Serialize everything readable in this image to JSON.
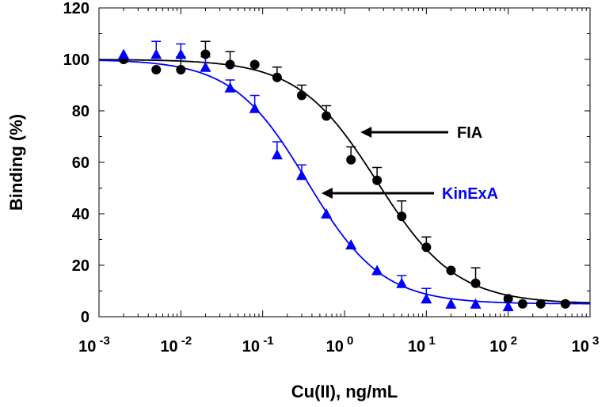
{
  "chart_data": {
    "type": "scatter",
    "title": "",
    "xlabel": "Cu(II), ng/mL",
    "ylabel": "Binding (%)",
    "xscale": "log",
    "xlim": [
      0.001,
      1000
    ],
    "ylim": [
      0,
      120
    ],
    "ytick_labels": [
      "0",
      "20",
      "40",
      "60",
      "80",
      "100",
      "120"
    ],
    "yticks": [
      0,
      20,
      40,
      60,
      80,
      100,
      120
    ],
    "xtick_base": "10",
    "xtick_exponents": [
      "-3",
      "-2",
      "-1",
      "0",
      "1",
      "2",
      "3"
    ],
    "xticks": [
      -3,
      -2,
      -1,
      0,
      1,
      2,
      3
    ],
    "grid": false,
    "series": [
      {
        "name": "FIA",
        "marker": "circle",
        "color": "#000000",
        "x": [
          0.002,
          0.005,
          0.01,
          0.02,
          0.04,
          0.08,
          0.15,
          0.3,
          0.6,
          1.2,
          2.5,
          5,
          10,
          20,
          40,
          100,
          150,
          250,
          500
        ],
        "y": [
          100,
          96,
          96,
          102,
          98,
          98,
          93,
          86,
          78,
          61,
          53,
          39,
          27,
          18,
          13,
          7,
          5,
          5,
          5
        ],
        "err": [
          0,
          0,
          5,
          5,
          5,
          0,
          4,
          4,
          4,
          5,
          5,
          6,
          4,
          0,
          6,
          0,
          0,
          0,
          0
        ],
        "fit": {
          "top": 100,
          "bottom": 5,
          "ic50": 2.5,
          "hill": 0.9
        }
      },
      {
        "name": "KinExA",
        "marker": "triangle",
        "color": "#0000ff",
        "x": [
          0.002,
          0.005,
          0.01,
          0.02,
          0.04,
          0.08,
          0.15,
          0.3,
          0.6,
          1.2,
          2.5,
          5,
          10,
          20,
          40,
          100
        ],
        "y": [
          102,
          102,
          102,
          97,
          89,
          81,
          63,
          55,
          40,
          28,
          18,
          13,
          7,
          5,
          5,
          4
        ],
        "err": [
          0,
          5,
          4,
          4,
          3,
          5,
          5,
          4,
          0,
          0,
          0,
          3,
          4,
          0,
          0,
          0
        ],
        "fit": {
          "top": 100,
          "bottom": 5,
          "ic50": 0.35,
          "hill": 0.95
        }
      }
    ],
    "annotations": [
      {
        "text": "FIA",
        "color": "#000000",
        "arrow_to_x": 1.2,
        "arrow_to_y": 72
      },
      {
        "text": "KinExA",
        "color": "#0000ff",
        "arrow_to_x": 0.4,
        "arrow_to_y": 48
      }
    ]
  }
}
